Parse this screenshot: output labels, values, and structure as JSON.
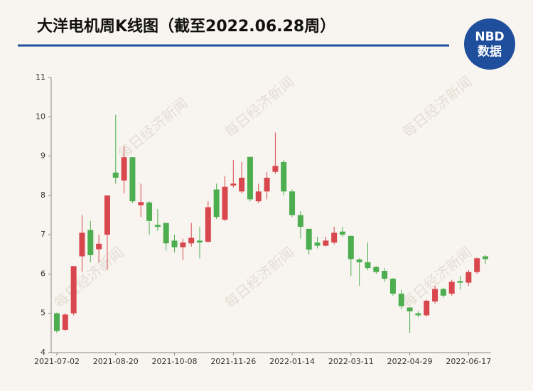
{
  "chart_data": {
    "type": "candlestick",
    "title": "大洋电机周K线图（截至2022.06.28周）",
    "categories": [
      "2021-07-02",
      null,
      null,
      null,
      null,
      null,
      null,
      "2021-08-20",
      null,
      null,
      null,
      null,
      null,
      null,
      "2021-10-08",
      null,
      null,
      null,
      null,
      null,
      null,
      "2021-11-26",
      null,
      null,
      null,
      null,
      null,
      null,
      "2022-01-14",
      null,
      null,
      null,
      null,
      null,
      null,
      "2022-03-11",
      null,
      null,
      null,
      null,
      null,
      null,
      "2022-04-29",
      null,
      null,
      null,
      null,
      null,
      null,
      "2022-06-17",
      null,
      null
    ],
    "open": [
      5.0,
      4.58,
      5.0,
      6.45,
      7.12,
      6.63,
      7.0,
      8.58,
      8.38,
      8.97,
      7.75,
      7.82,
      7.25,
      7.3,
      6.85,
      6.68,
      6.78,
      6.85,
      6.82,
      8.15,
      7.38,
      8.25,
      8.1,
      8.98,
      7.85,
      8.1,
      8.6,
      8.85,
      8.1,
      7.5,
      7.15,
      6.8,
      6.72,
      6.8,
      7.08,
      6.97,
      6.37,
      6.3,
      6.18,
      6.08,
      5.88,
      5.5,
      5.15,
      5.0,
      4.95,
      5.3,
      5.62,
      5.5,
      5.82,
      5.78,
      6.05,
      6.45
    ],
    "high": [
      5.02,
      5.0,
      6.2,
      7.5,
      7.35,
      7.0,
      8.0,
      10.05,
      9.25,
      8.97,
      8.3,
      7.85,
      7.65,
      7.3,
      7.0,
      6.9,
      7.3,
      7.2,
      7.85,
      8.3,
      8.5,
      8.9,
      8.85,
      8.98,
      8.3,
      8.6,
      9.6,
      8.9,
      8.15,
      7.6,
      7.15,
      6.95,
      6.95,
      7.2,
      7.2,
      6.97,
      6.4,
      6.8,
      6.2,
      6.15,
      5.9,
      5.6,
      5.15,
      5.05,
      5.35,
      5.7,
      5.65,
      5.85,
      5.95,
      6.1,
      6.42,
      6.48
    ],
    "low": [
      4.5,
      4.55,
      4.95,
      6.05,
      6.3,
      6.3,
      6.1,
      8.3,
      8.05,
      7.8,
      7.45,
      7.0,
      7.1,
      6.6,
      6.55,
      6.35,
      6.7,
      6.4,
      6.8,
      7.4,
      7.35,
      8.2,
      8.05,
      7.85,
      7.8,
      7.9,
      8.55,
      8.0,
      7.45,
      6.9,
      6.5,
      6.65,
      6.7,
      6.75,
      6.95,
      5.95,
      5.7,
      6.1,
      6.0,
      5.8,
      5.45,
      5.1,
      4.5,
      4.9,
      4.92,
      5.25,
      5.4,
      5.45,
      5.6,
      5.7,
      6.0,
      6.25
    ],
    "close": [
      4.55,
      4.97,
      6.2,
      7.05,
      6.48,
      6.77,
      8.0,
      8.45,
      8.97,
      7.85,
      7.83,
      7.35,
      7.2,
      6.78,
      6.68,
      6.8,
      6.92,
      6.8,
      7.7,
      7.45,
      8.22,
      8.3,
      8.45,
      7.9,
      8.1,
      8.45,
      8.75,
      8.1,
      7.5,
      7.2,
      6.62,
      6.72,
      6.85,
      7.05,
      7.0,
      6.38,
      6.3,
      6.15,
      6.05,
      5.88,
      5.5,
      5.18,
      5.05,
      4.95,
      5.32,
      5.62,
      5.45,
      5.8,
      5.78,
      6.05,
      6.4,
      6.38
    ],
    "up_color": "#d8474d",
    "down_color": "#4cae4f",
    "ylim": [
      4,
      11
    ],
    "yticks": [
      4,
      5,
      6,
      7,
      8,
      9,
      10,
      11
    ],
    "grid": false
  },
  "logo": {
    "line1": "NBD",
    "line2": "数据"
  },
  "watermark": "每日经济新闻"
}
